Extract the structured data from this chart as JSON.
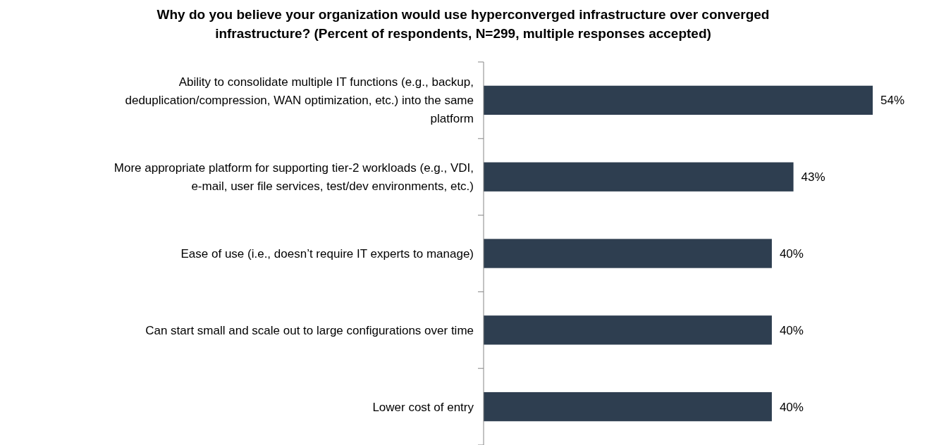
{
  "chart_data": {
    "type": "bar",
    "orientation": "horizontal",
    "title": "Why do you believe your organization would use hyperconverged infrastructure over converged infrastructure? (Percent of respondents, N=299, multiple responses accepted)",
    "categories": [
      "Ability to consolidate multiple IT functions (e.g., backup, deduplication/compression, WAN optimization, etc.) into the same platform",
      "More appropriate platform for supporting tier-2 workloads (e.g., VDI, e-mail, user file services, test/dev environments, etc.)",
      "Ease of use (i.e., doesn’t require IT experts to manage)",
      "Can start small and scale out to large configurations over time",
      "Lower cost of entry"
    ],
    "values": [
      54,
      43,
      40,
      40,
      40
    ],
    "value_labels": [
      "54%",
      "43%",
      "40%",
      "40%",
      "40%"
    ],
    "color": "#2e3e50"
  }
}
